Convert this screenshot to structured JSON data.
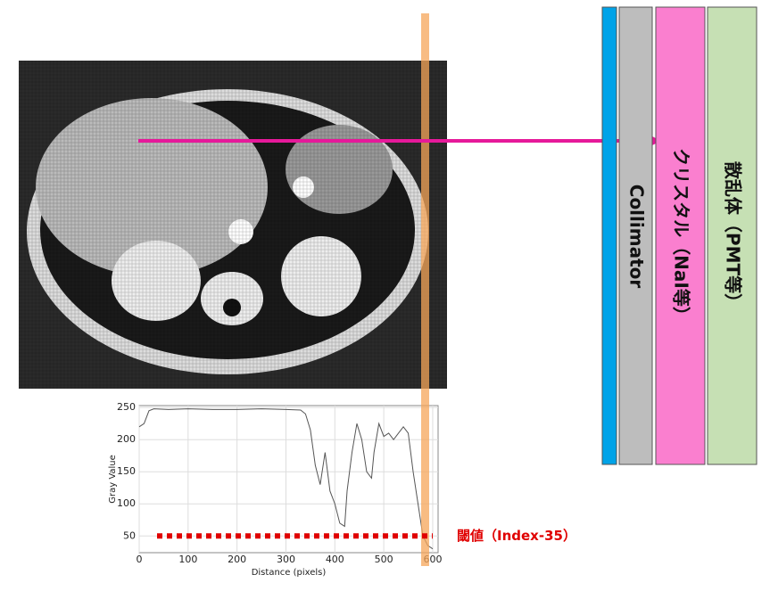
{
  "labels": {
    "collimator": "Collimator",
    "crystal": "クリスタル（NaI等）",
    "scatter": "散乱体（PMT等）"
  },
  "chart_data": {
    "type": "line",
    "ylabel": "Gray Value",
    "xlabel": "Distance (pixels)",
    "x": [
      0,
      10,
      20,
      30,
      60,
      100,
      150,
      200,
      250,
      300,
      330,
      340,
      350,
      360,
      370,
      380,
      385,
      390,
      400,
      410,
      420,
      425,
      435,
      445,
      455,
      465,
      475,
      480,
      490,
      500,
      510,
      520,
      530,
      540,
      550,
      560,
      570,
      580,
      590,
      600
    ],
    "series": [
      {
        "color": "#555555",
        "values": [
          220,
          225,
          245,
          248,
          247,
          248,
          247,
          247,
          248,
          247,
          246,
          240,
          215,
          160,
          130,
          180,
          150,
          120,
          100,
          70,
          65,
          120,
          180,
          225,
          200,
          150,
          140,
          180,
          225,
          205,
          210,
          200,
          210,
          220,
          210,
          150,
          100,
          50,
          35,
          30
        ]
      }
    ],
    "xlim": [
      0,
      611
    ],
    "ylim": [
      24,
      253
    ],
    "xticks": [
      0,
      100,
      200,
      300,
      400,
      500,
      600
    ],
    "yticks": [
      50,
      100,
      150,
      200,
      250
    ],
    "grid": true,
    "threshold": 50,
    "threshold_label": "閾値（Index-35）",
    "threshold_color": "#e00000"
  }
}
